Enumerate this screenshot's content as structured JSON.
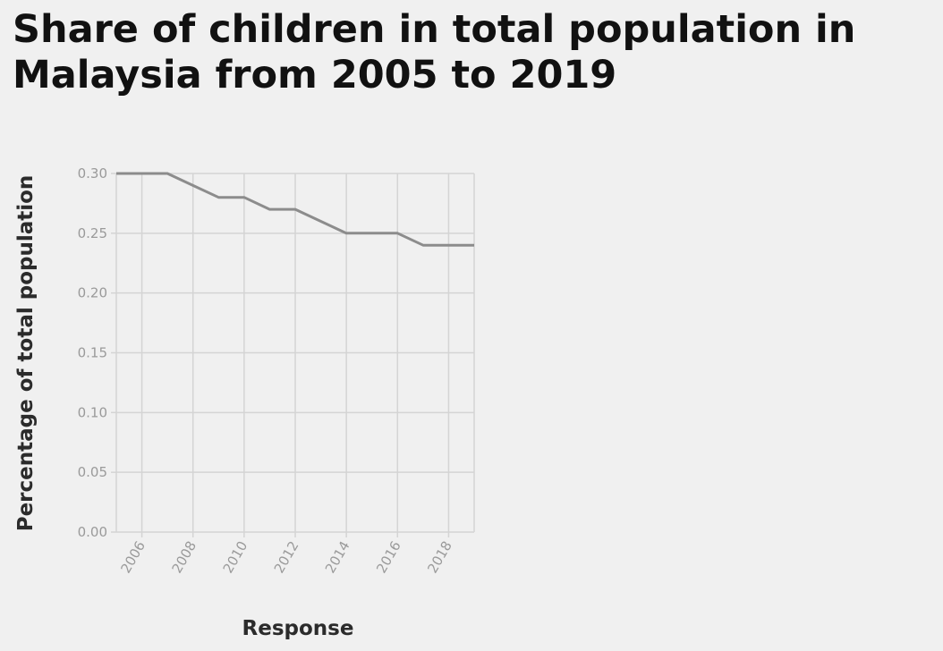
{
  "chart_data": {
    "type": "line",
    "title": "Share of children in total population in Malaysia from 2005 to 2019",
    "xlabel": "Response",
    "ylabel": "Percentage of total population",
    "x": [
      2005,
      2006,
      2007,
      2008,
      2009,
      2010,
      2011,
      2012,
      2013,
      2014,
      2015,
      2016,
      2017,
      2018,
      2019
    ],
    "series": [
      {
        "values": [
          0.3,
          0.3,
          0.3,
          0.29,
          0.28,
          0.28,
          0.27,
          0.27,
          0.26,
          0.25,
          0.25,
          0.25,
          0.24,
          0.24,
          0.24
        ]
      }
    ],
    "xlim": [
      2005,
      2019
    ],
    "ylim": [
      0,
      0.3
    ],
    "x_ticks": [
      "2006",
      "2008",
      "2010",
      "2012",
      "2014",
      "2016",
      "2018"
    ],
    "y_ticks": [
      "0.00",
      "0.05",
      "0.10",
      "0.15",
      "0.20",
      "0.25",
      "0.30"
    ],
    "grid": true,
    "colors": {
      "line": "#8c8c8c",
      "grid": "#d4d4d4",
      "background": "#f0f0f0"
    }
  }
}
